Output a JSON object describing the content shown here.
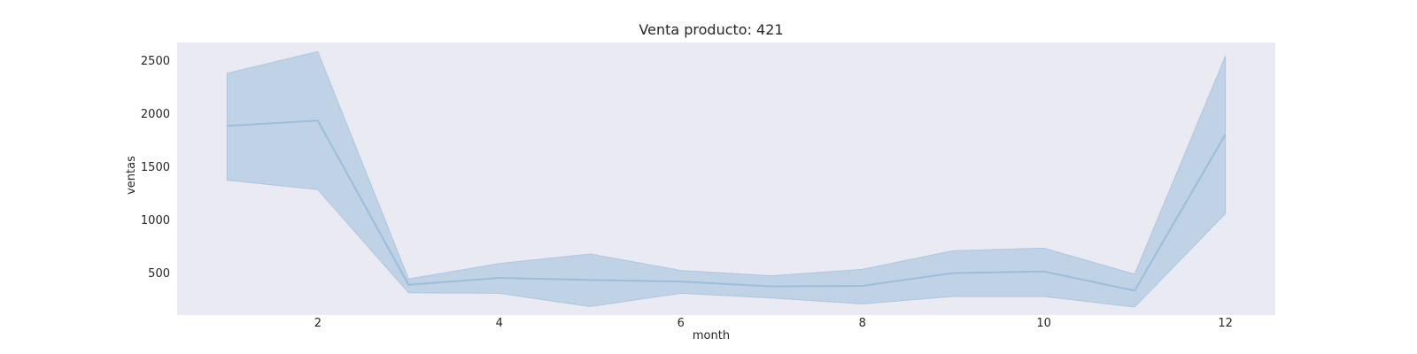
{
  "chart_data": {
    "type": "line",
    "title": "Venta producto: 421",
    "xlabel": "month",
    "ylabel": "ventas",
    "x": [
      1,
      2,
      3,
      4,
      5,
      6,
      7,
      8,
      9,
      10,
      11,
      12
    ],
    "series": [
      {
        "values": [
          1880,
          1930,
          385,
          450,
          430,
          415,
          370,
          375,
          495,
          510,
          330,
          1800
        ],
        "band_lower": [
          1370,
          1280,
          310,
          305,
          180,
          305,
          260,
          205,
          275,
          275,
          175,
          1055
        ],
        "band_upper": [
          2375,
          2580,
          440,
          585,
          675,
          520,
          470,
          530,
          705,
          730,
          485,
          2535
        ]
      }
    ],
    "xlim": [
      0.45,
      12.55
    ],
    "ylim": [
      100,
      2665
    ],
    "xticks": [
      2,
      4,
      6,
      8,
      10,
      12
    ],
    "yticks": [
      500,
      1000,
      1500,
      2000,
      2500
    ],
    "grid": false,
    "background_color": "#eaeaf2",
    "line_color": "#9dbdd9",
    "band_color": "#aec7e0"
  }
}
